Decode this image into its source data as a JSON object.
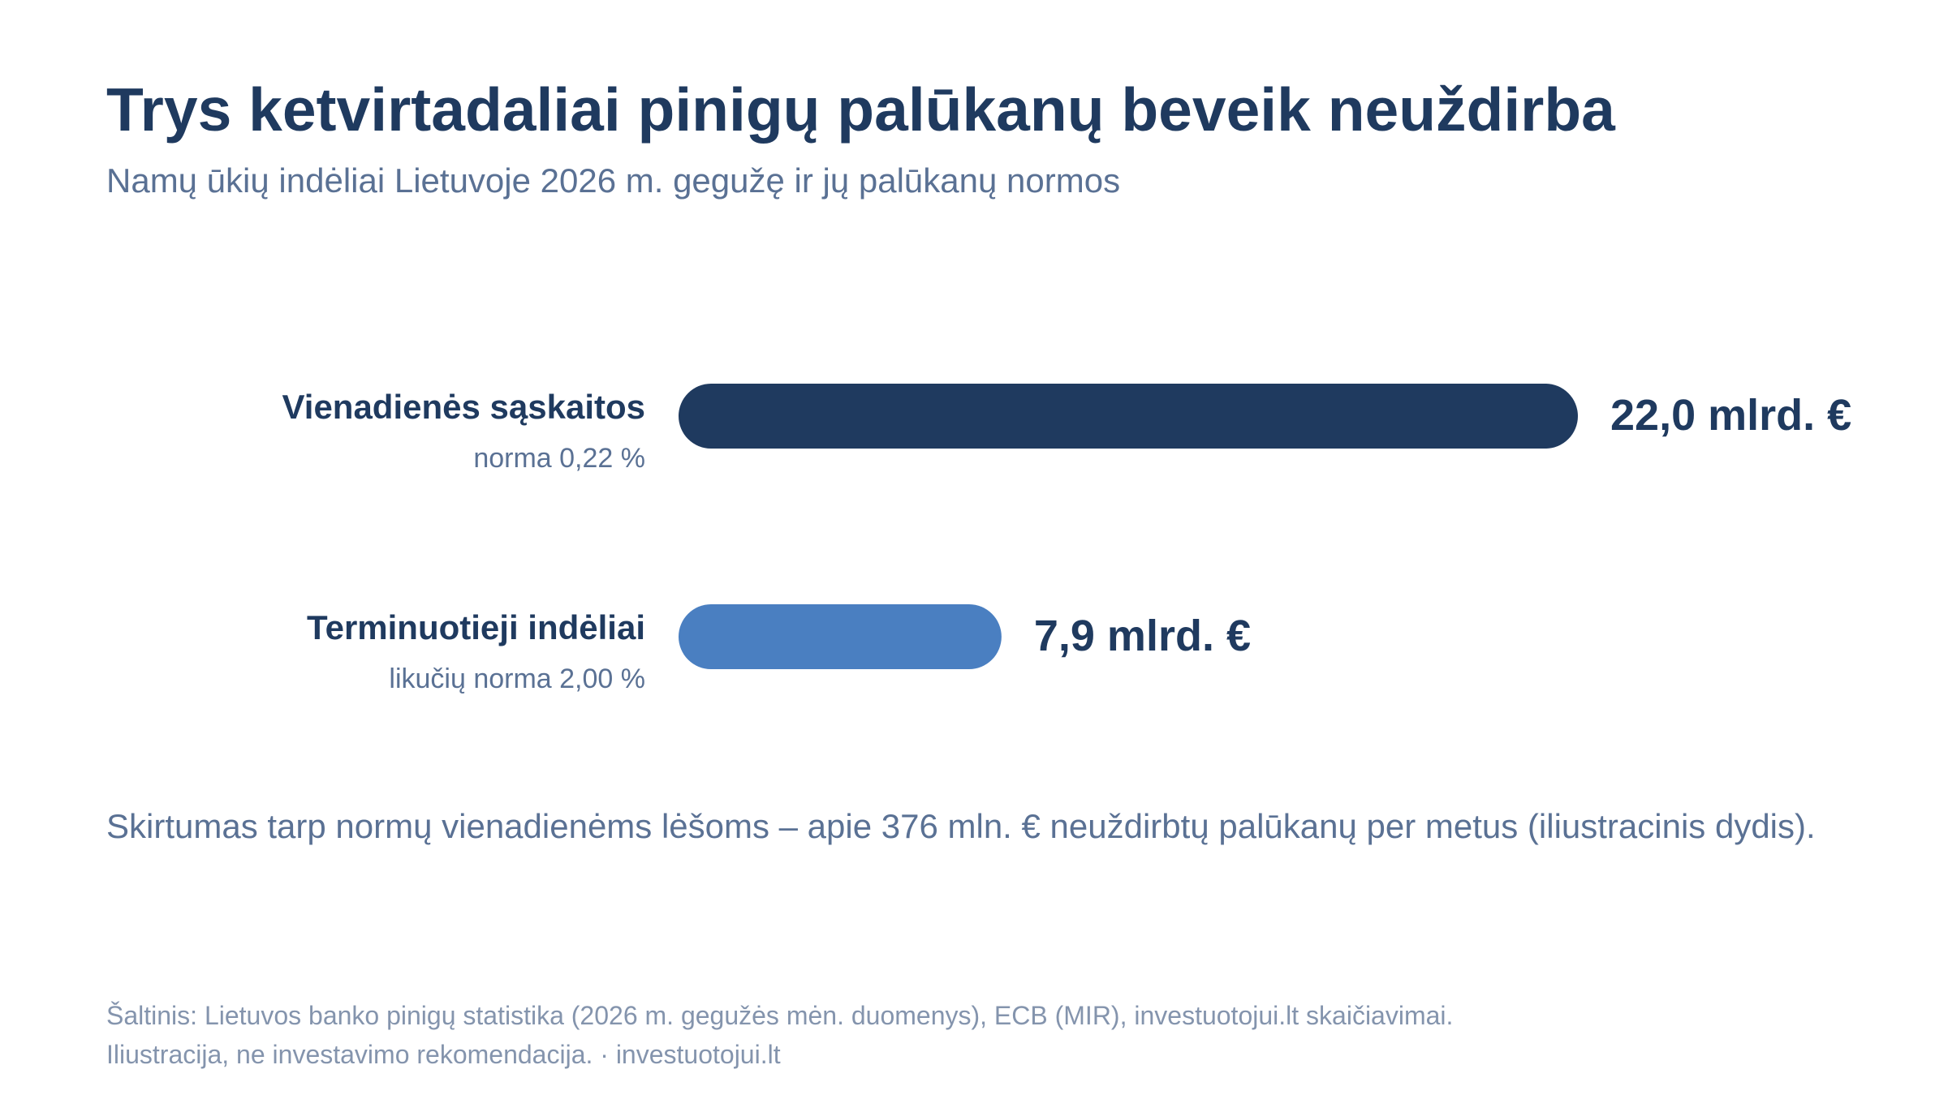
{
  "header": {
    "title": "Trys ketvirtadaliai pinigų palūkanų beveik neuždirba",
    "subtitle": "Namų ūkių indėliai Lietuvoje 2026 m. gegužę ir jų palūkanų normos"
  },
  "chart_data": {
    "type": "bar",
    "orientation": "horizontal",
    "categories": [
      "Vienadienės sąskaitos",
      "Terminuotieji indėliai"
    ],
    "sublabels": [
      "norma 0,22 %",
      "likučių norma 2,00 %"
    ],
    "values": [
      22.0,
      7.9
    ],
    "value_labels": [
      "22,0 mlrd. €",
      "7,9 mlrd. €"
    ],
    "rates_percent": [
      0.22,
      2.0
    ],
    "unit": "mlrd. €",
    "colors": [
      "#1f3a5f",
      "#4a7fc1"
    ],
    "grid": false,
    "xlim": [
      0,
      22.0
    ]
  },
  "note": "Skirtumas tarp normų vienadienėms lėšoms – apie 376 mln. € neuždirbtų palūkanų per metus (iliustracinis dydis).",
  "footer": {
    "source": "Šaltinis: Lietuvos banko pinigų statistika (2026 m. gegužės mėn. duomenys), ECB (MIR), investuotojui.lt skaičiavimai.",
    "disclaimer": "Iliustracija, ne investavimo rekomendacija. · investuotojui.lt"
  },
  "colors": {
    "title": "#1f3a5f",
    "muted": "#5a7194",
    "footer": "#8494ad"
  }
}
